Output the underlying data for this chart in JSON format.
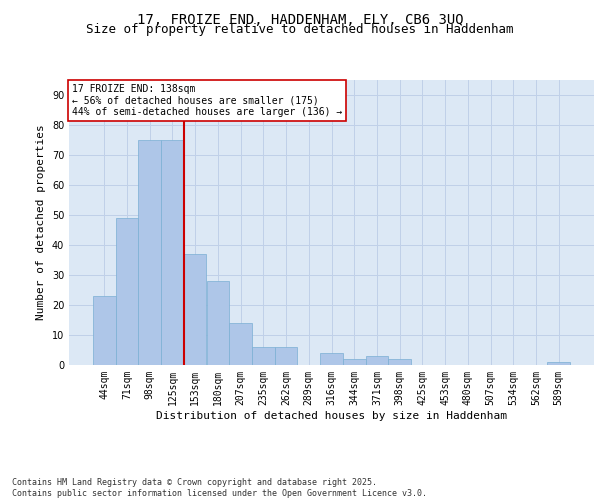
{
  "title1": "17, FROIZE END, HADDENHAM, ELY, CB6 3UQ",
  "title2": "Size of property relative to detached houses in Haddenham",
  "xlabel": "Distribution of detached houses by size in Haddenham",
  "ylabel": "Number of detached properties",
  "categories": [
    "44sqm",
    "71sqm",
    "98sqm",
    "125sqm",
    "153sqm",
    "180sqm",
    "207sqm",
    "235sqm",
    "262sqm",
    "289sqm",
    "316sqm",
    "344sqm",
    "371sqm",
    "398sqm",
    "425sqm",
    "453sqm",
    "480sqm",
    "507sqm",
    "534sqm",
    "562sqm",
    "589sqm"
  ],
  "values": [
    23,
    49,
    75,
    75,
    37,
    28,
    14,
    6,
    6,
    0,
    4,
    2,
    3,
    2,
    0,
    0,
    0,
    0,
    0,
    0,
    1
  ],
  "bar_color": "#aec6e8",
  "bar_edge_color": "#7aafd4",
  "vline_x": 3.5,
  "vline_color": "#cc0000",
  "annotation_text": "17 FROIZE END: 138sqm\n← 56% of detached houses are smaller (175)\n44% of semi-detached houses are larger (136) →",
  "annotation_box_color": "#ffffff",
  "annotation_box_edge": "#cc0000",
  "ylim": [
    0,
    95
  ],
  "yticks": [
    0,
    10,
    20,
    30,
    40,
    50,
    60,
    70,
    80,
    90
  ],
  "grid_color": "#c0d0e8",
  "bg_color": "#dce8f5",
  "footer": "Contains HM Land Registry data © Crown copyright and database right 2025.\nContains public sector information licensed under the Open Government Licence v3.0.",
  "title_fontsize": 10,
  "subtitle_fontsize": 9,
  "axis_label_fontsize": 8,
  "tick_fontsize": 7,
  "annotation_fontsize": 7,
  "footer_fontsize": 6
}
